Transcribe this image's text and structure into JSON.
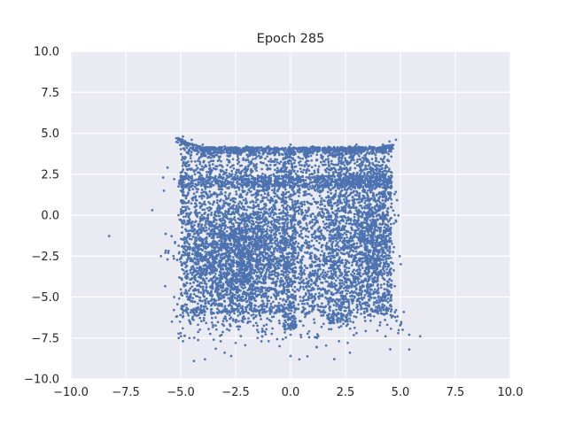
{
  "chart_data": {
    "type": "scatter",
    "title": "Epoch 285",
    "xlabel": "",
    "ylabel": "",
    "xlim": [
      -10,
      10
    ],
    "ylim": [
      -10,
      10
    ],
    "x_ticks": [
      -10,
      -7.5,
      -5,
      -2.5,
      0,
      2.5,
      5,
      7.5,
      10
    ],
    "x_tick_labels": [
      "−10.0",
      "−7.5",
      "−5.0",
      "−2.5",
      "0.0",
      "2.5",
      "5.0",
      "7.5",
      "10.0"
    ],
    "y_ticks": [
      10,
      7.5,
      5,
      2.5,
      0,
      -2.5,
      -5,
      -7.5,
      -10
    ],
    "y_tick_labels": [
      "10.0",
      "7.5",
      "5.0",
      "2.5",
      "0.0",
      "−2.5",
      "−5.0",
      "−7.5",
      "−10.0"
    ],
    "grid": true,
    "legend": "none",
    "colors": {
      "point": "#4c72b0",
      "axes_background": "#eaeaf2",
      "grid": "#ffffff",
      "text": "#262626"
    },
    "series": [
      {
        "marker": "dot",
        "point_count_shown_approx": 12000,
        "points": [
          [
            -6.3,
            0.3
          ],
          [
            -5.8,
            2.3
          ],
          [
            -5.6,
            2.9
          ],
          [
            -5.2,
            4.7
          ],
          [
            -4.9,
            4.8
          ],
          [
            -4.5,
            4.6
          ],
          [
            -4.0,
            4.3
          ],
          [
            -3.0,
            4.2
          ],
          [
            -2.0,
            4.2
          ],
          [
            -1.0,
            4.2
          ],
          [
            0.0,
            4.3
          ],
          [
            1.0,
            4.2
          ],
          [
            2.0,
            4.1
          ],
          [
            3.0,
            4.3
          ],
          [
            3.6,
            4.2
          ],
          [
            4.2,
            4.3
          ],
          [
            4.5,
            4.5
          ],
          [
            4.8,
            4.6
          ],
          [
            -5.3,
            2.2
          ],
          [
            -5.0,
            2.6
          ],
          [
            -3.0,
            2.0
          ],
          [
            -1.0,
            2.1
          ],
          [
            1.0,
            1.8
          ],
          [
            3.0,
            2.0
          ],
          [
            4.6,
            2.6
          ],
          [
            -5.1,
            0.0
          ],
          [
            -4.6,
            -0.5
          ],
          [
            4.7,
            -0.5
          ],
          [
            -5.9,
            -2.5
          ],
          [
            -5.6,
            -2.7
          ],
          [
            -5.7,
            -2.3
          ],
          [
            -5.3,
            -5.0
          ],
          [
            -5.2,
            -6.2
          ],
          [
            -5.4,
            -6.5
          ],
          [
            -5.0,
            -7.2
          ],
          [
            -4.9,
            -7.7
          ],
          [
            -4.6,
            -7.5
          ],
          [
            -4.4,
            -8.9
          ],
          [
            -3.9,
            -8.8
          ],
          [
            -3.5,
            -7.6
          ],
          [
            -3.0,
            -8.4
          ],
          [
            -2.7,
            -8.6
          ],
          [
            -2.5,
            -7.8
          ],
          [
            -1.5,
            -7.5
          ],
          [
            -1.0,
            -7.7
          ],
          [
            -0.5,
            -8.0
          ],
          [
            0.0,
            -8.6
          ],
          [
            0.4,
            -8.8
          ],
          [
            1.2,
            -7.5
          ],
          [
            2.2,
            -7.7
          ],
          [
            2.6,
            -7.8
          ],
          [
            2.7,
            -8.4
          ],
          [
            2.3,
            -6.0
          ],
          [
            3.0,
            -7.2
          ],
          [
            4.3,
            -6.4
          ],
          [
            4.4,
            -6.7
          ],
          [
            4.8,
            -5.8
          ],
          [
            4.9,
            -7.2
          ],
          [
            5.1,
            -7.0
          ],
          [
            5.4,
            -7.3
          ],
          [
            5.9,
            -7.4
          ],
          [
            5.4,
            -8.2
          ],
          [
            0.0,
            -7.3
          ],
          [
            0.0,
            -6.0
          ]
        ]
      }
    ]
  }
}
